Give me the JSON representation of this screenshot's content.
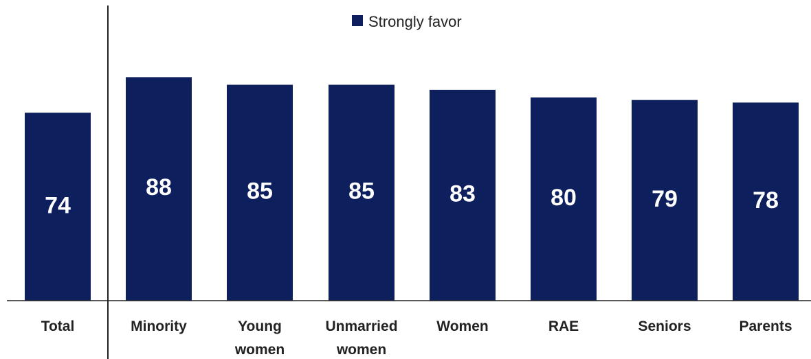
{
  "chart_data": {
    "type": "bar",
    "title": "",
    "xlabel": "",
    "ylabel": "",
    "ylim": [
      0,
      100
    ],
    "grid": false,
    "legend": {
      "placement": "top-center",
      "entries": [
        "Strongly favor"
      ]
    },
    "colors": {
      "bar": "#0d1f5c",
      "axis": "#222222",
      "label": "#ffffff"
    },
    "categories": [
      [
        "Total"
      ],
      [
        "Minority"
      ],
      [
        "Young",
        "women"
      ],
      [
        "Unmarried",
        "women"
      ],
      [
        "Women"
      ],
      [
        "RAE"
      ],
      [
        "Seniors"
      ],
      [
        "Parents"
      ]
    ],
    "series": [
      {
        "name": "Strongly favor",
        "values": [
          74,
          88,
          85,
          85,
          83,
          80,
          79,
          78
        ]
      }
    ]
  }
}
